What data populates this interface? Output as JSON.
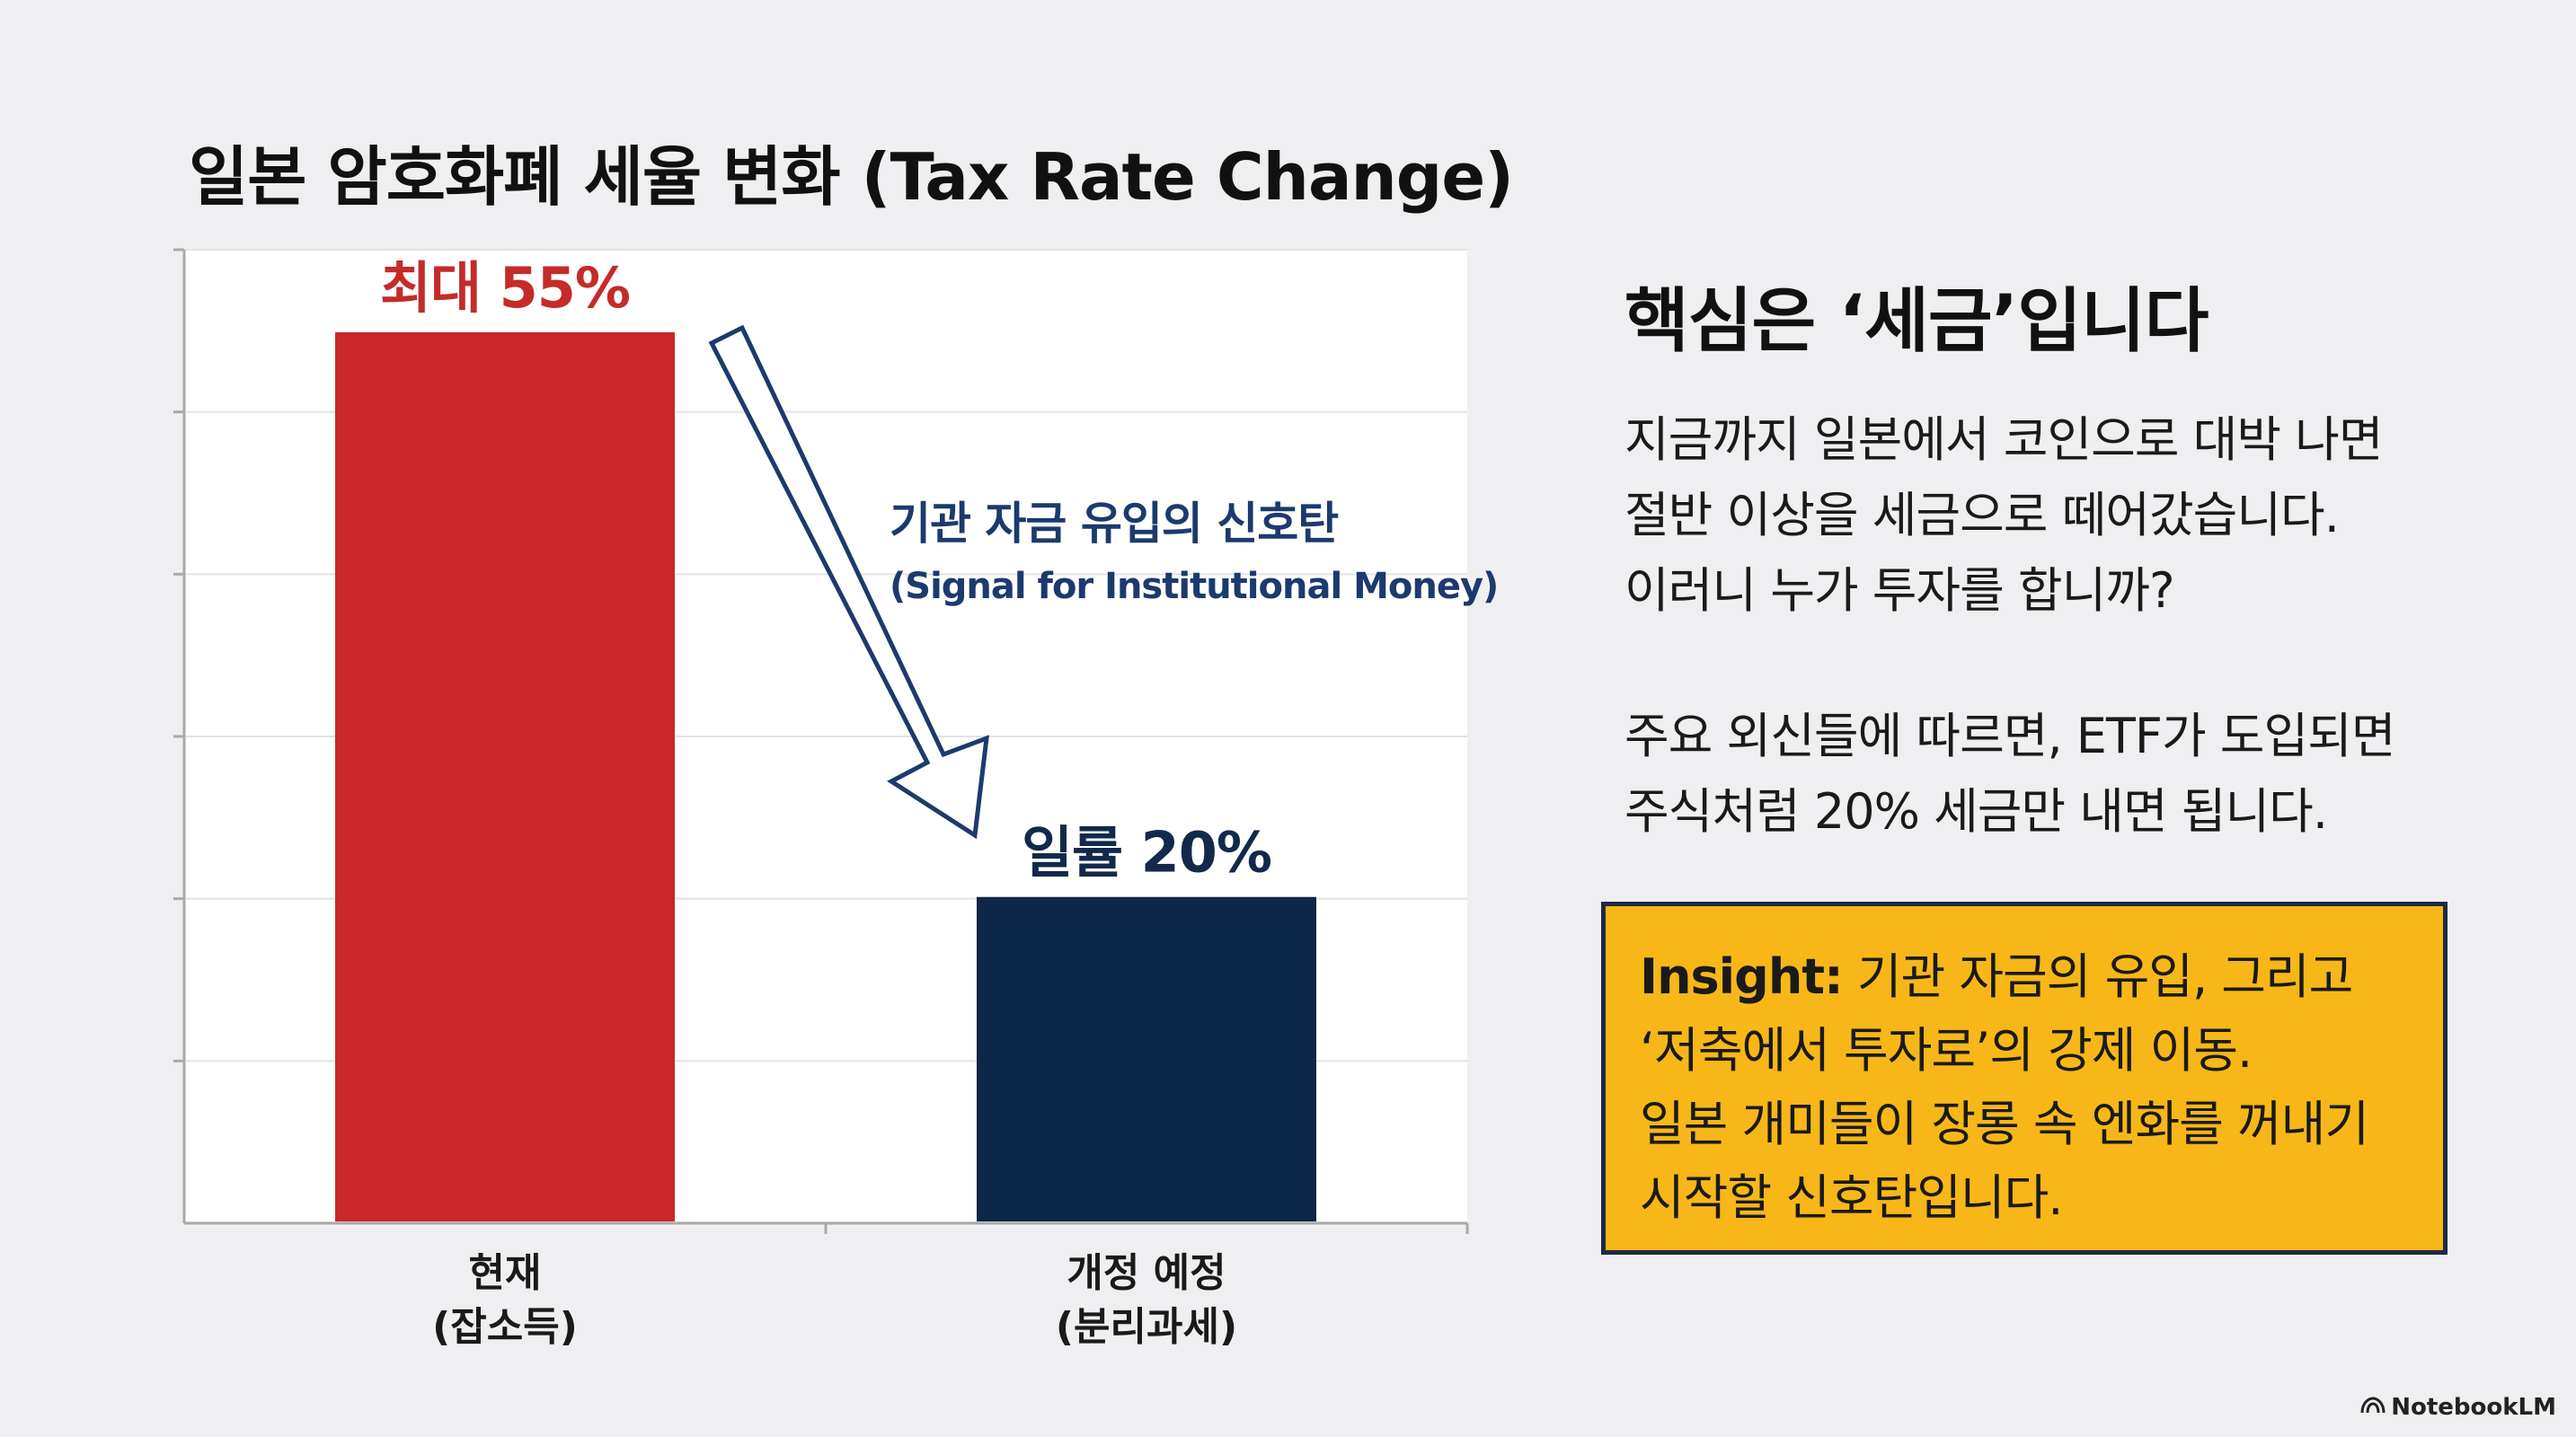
{
  "colors": {
    "background": "#efeff2",
    "plot_background": "#ffffff",
    "current_bar": "#c8282a",
    "proposed_bar": "#0d2748",
    "current_label": "#c42b29",
    "proposed_label": "#13294b",
    "annotation": "#1c3a6e",
    "insight_box": "#f7b718",
    "insight_border": "#1c2a45"
  },
  "chart_data": {
    "type": "bar",
    "title": "일본 암호화폐 세율 변화 (Tax Rate Change)",
    "categories": [
      {
        "line1": "현재",
        "line2": "(잡소득)"
      },
      {
        "line1": "개정 예정",
        "line2": "(분리과세)"
      }
    ],
    "values": [
      55,
      20
    ],
    "data_labels": [
      "최대 55%",
      "일률 20%"
    ],
    "xlabel": "",
    "ylabel": "",
    "ylim": [
      0,
      60
    ],
    "grid": true,
    "annotation": {
      "line1": "기관 자금 유입의 신호탄",
      "line2": "(Signal for Institutional Money)"
    }
  },
  "panel": {
    "title": "핵심은 ‘세금’입니다",
    "paragraph1": [
      "지금까지 일본에서 코인으로 대박 나면",
      "절반 이상을 세금으로 떼어갔습니다.",
      "이러니 누가 투자를 합니까?"
    ],
    "paragraph2": [
      "주요 외신들에 따르면, ETF가 도입되면",
      "주식처럼 20% 세금만 내면 됩니다."
    ],
    "insight": {
      "label": "Insight:",
      "first_line": "기관 자금의 유입, 그리고",
      "lines": [
        "‘저축에서 투자로’의 강제 이동.",
        "일본 개미들이 장롱 속 엔화를 꺼내기",
        "시작할 신호탄입니다."
      ]
    }
  },
  "brand": {
    "icon": "notebooklm-icon",
    "text": "NotebookLM"
  }
}
